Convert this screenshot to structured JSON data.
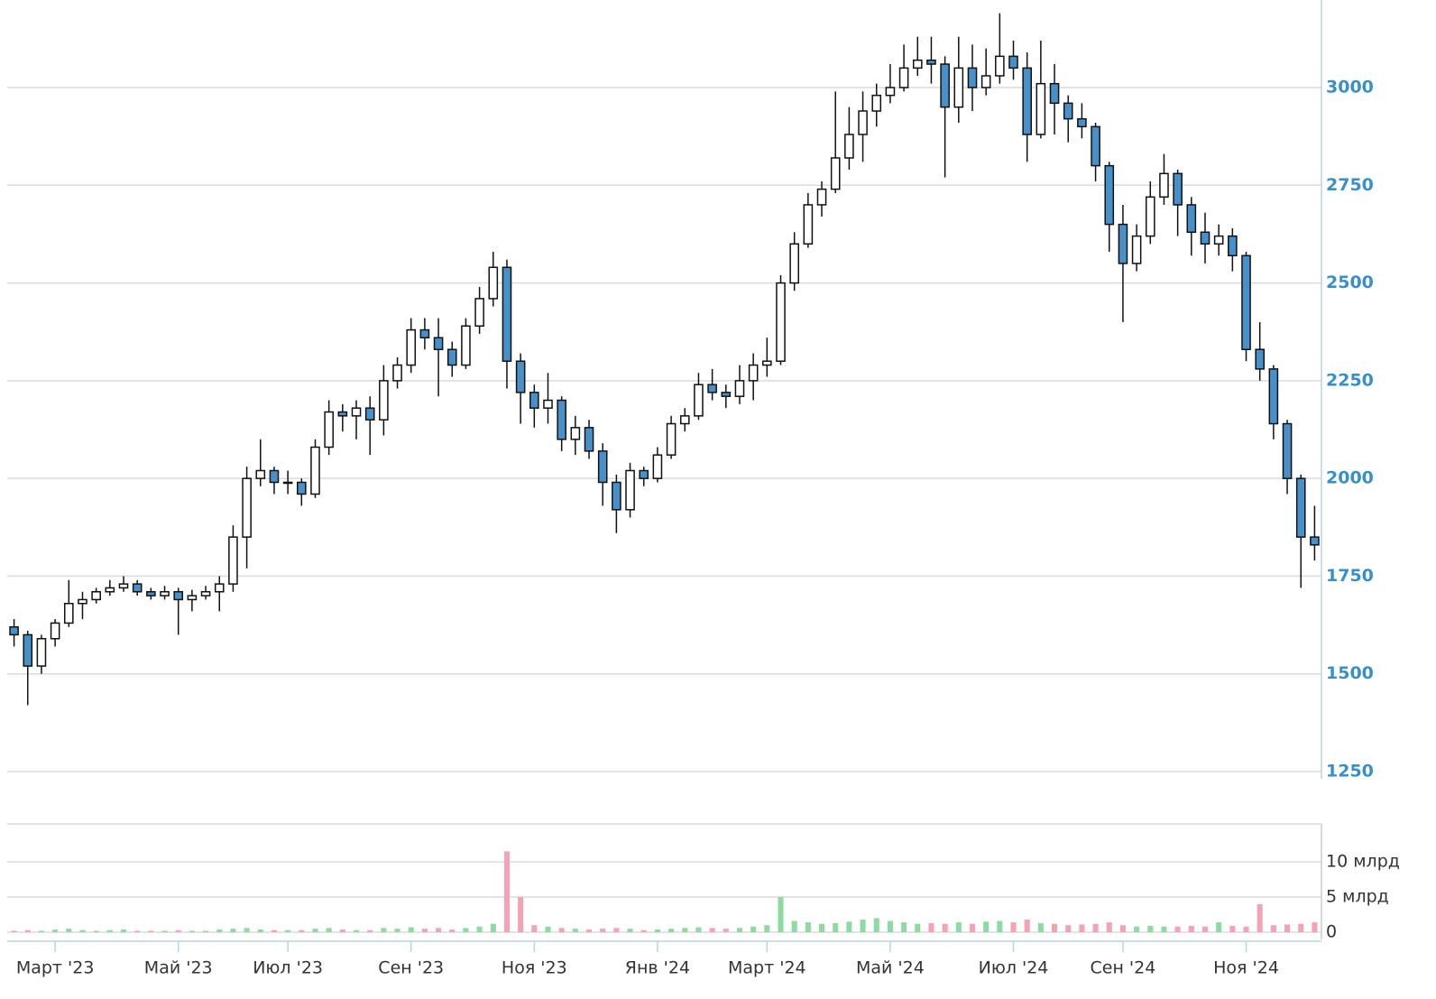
{
  "chart_data": {
    "type": "candlestick",
    "categories": [
      null,
      null,
      null,
      "Март '23",
      null,
      null,
      null,
      null,
      null,
      null,
      null,
      null,
      "Май '23",
      null,
      null,
      null,
      null,
      null,
      null,
      null,
      "Июл '23",
      null,
      null,
      null,
      null,
      null,
      null,
      null,
      null,
      "Сен '23",
      null,
      null,
      null,
      null,
      null,
      null,
      null,
      null,
      "Ноя '23",
      null,
      null,
      null,
      null,
      null,
      null,
      null,
      null,
      "Янв '24",
      null,
      null,
      null,
      null,
      null,
      null,
      null,
      "Март '24",
      null,
      null,
      null,
      null,
      null,
      null,
      null,
      null,
      "Май '24",
      null,
      null,
      null,
      null,
      null,
      null,
      null,
      null,
      "Июл '24",
      null,
      null,
      null,
      null,
      null,
      null,
      null,
      "Сен '24",
      null,
      null,
      null,
      null,
      null,
      null,
      null,
      null,
      "Ноя '24",
      null,
      null,
      null,
      null,
      null
    ],
    "open": [
      1620,
      1600,
      1520,
      1590,
      1630,
      1680,
      1690,
      1710,
      1720,
      1730,
      1710,
      1700,
      1710,
      1690,
      1700,
      1710,
      1730,
      1850,
      2000,
      2020,
      1990,
      1990,
      1960,
      2080,
      2170,
      2160,
      2180,
      2150,
      2250,
      2290,
      2380,
      2360,
      2330,
      2290,
      2390,
      2460,
      2540,
      2300,
      2220,
      2180,
      2200,
      2100,
      2130,
      2070,
      1990,
      1920,
      2020,
      2000,
      2060,
      2140,
      2160,
      2240,
      2220,
      2210,
      2250,
      2290,
      2300,
      2500,
      2600,
      2700,
      2740,
      2820,
      2880,
      2940,
      2980,
      3000,
      3050,
      3070,
      3060,
      2950,
      3050,
      3000,
      3030,
      3080,
      3050,
      2880,
      3010,
      2960,
      2920,
      2900,
      2800,
      2650,
      2550,
      2620,
      2720,
      2780,
      2700,
      2630,
      2600,
      2620,
      2570,
      2330,
      2280,
      2140,
      2000,
      1850
    ],
    "high": [
      1640,
      1610,
      1600,
      1640,
      1740,
      1710,
      1720,
      1740,
      1750,
      1740,
      1720,
      1725,
      1720,
      1715,
      1725,
      1750,
      1880,
      2030,
      2100,
      2030,
      2020,
      2000,
      2100,
      2200,
      2190,
      2200,
      2210,
      2290,
      2310,
      2410,
      2410,
      2410,
      2350,
      2410,
      2490,
      2580,
      2560,
      2320,
      2240,
      2270,
      2210,
      2160,
      2150,
      2090,
      2010,
      2040,
      2030,
      2080,
      2160,
      2180,
      2270,
      2280,
      2240,
      2290,
      2320,
      2360,
      2520,
      2630,
      2730,
      2760,
      2990,
      2950,
      2990,
      3010,
      3060,
      3110,
      3130,
      3130,
      3080,
      3130,
      3110,
      3100,
      3190,
      3120,
      3090,
      3120,
      3060,
      2980,
      2960,
      2910,
      2810,
      2700,
      2650,
      2760,
      2830,
      2790,
      2720,
      2680,
      2650,
      2640,
      2580,
      2400,
      2290,
      2150,
      2010,
      1930
    ],
    "low": [
      1570,
      1420,
      1500,
      1570,
      1620,
      1640,
      1680,
      1700,
      1710,
      1700,
      1690,
      1690,
      1600,
      1660,
      1690,
      1660,
      1710,
      1770,
      1980,
      1960,
      1960,
      1930,
      1950,
      2060,
      2120,
      2100,
      2060,
      2110,
      2230,
      2270,
      2330,
      2210,
      2260,
      2280,
      2370,
      2440,
      2230,
      2140,
      2130,
      2140,
      2070,
      2060,
      2050,
      1930,
      1860,
      1900,
      1980,
      1990,
      2050,
      2120,
      2150,
      2200,
      2180,
      2190,
      2200,
      2260,
      2290,
      2480,
      2590,
      2670,
      2730,
      2790,
      2810,
      2900,
      2960,
      2990,
      3030,
      3010,
      2770,
      2910,
      2940,
      2980,
      3010,
      3020,
      2810,
      2870,
      2880,
      2860,
      2870,
      2760,
      2580,
      2400,
      2530,
      2600,
      2700,
      2620,
      2570,
      2550,
      2570,
      2530,
      2300,
      2250,
      2100,
      1960,
      1720,
      1790
    ],
    "close": [
      1600,
      1520,
      1590,
      1630,
      1680,
      1690,
      1710,
      1720,
      1730,
      1710,
      1700,
      1710,
      1690,
      1700,
      1710,
      1730,
      1850,
      2000,
      2020,
      1990,
      1990,
      1960,
      2080,
      2170,
      2160,
      2180,
      2150,
      2250,
      2290,
      2380,
      2360,
      2330,
      2290,
      2390,
      2460,
      2540,
      2300,
      2220,
      2180,
      2200,
      2100,
      2130,
      2070,
      1990,
      1920,
      2020,
      2000,
      2060,
      2140,
      2160,
      2240,
      2220,
      2210,
      2250,
      2290,
      2300,
      2500,
      2600,
      2700,
      2740,
      2820,
      2880,
      2940,
      2980,
      3000,
      3050,
      3070,
      3060,
      2950,
      3050,
      3000,
      3030,
      3080,
      3050,
      2880,
      3010,
      2960,
      2920,
      2900,
      2800,
      2650,
      2550,
      2620,
      2720,
      2780,
      2700,
      2630,
      2600,
      2620,
      2570,
      2330,
      2280,
      2140,
      2000,
      1850,
      1830
    ],
    "volume": [
      0.2,
      0.3,
      0.2,
      0.4,
      0.5,
      0.3,
      0.2,
      0.3,
      0.4,
      0.2,
      0.2,
      0.2,
      0.3,
      0.2,
      0.2,
      0.4,
      0.5,
      0.6,
      0.4,
      0.3,
      0.3,
      0.3,
      0.5,
      0.6,
      0.4,
      0.3,
      0.3,
      0.6,
      0.5,
      0.7,
      0.5,
      0.6,
      0.4,
      0.6,
      0.8,
      1.2,
      11.5,
      5.0,
      1.0,
      0.8,
      0.6,
      0.5,
      0.4,
      0.5,
      0.6,
      0.5,
      0.3,
      0.4,
      0.5,
      0.6,
      0.7,
      0.6,
      0.5,
      0.6,
      0.8,
      1.0,
      5.0,
      1.6,
      1.4,
      1.2,
      1.3,
      1.5,
      1.8,
      2.0,
      1.6,
      1.4,
      1.2,
      1.3,
      1.2,
      1.4,
      1.2,
      1.5,
      1.6,
      1.4,
      1.8,
      1.3,
      1.2,
      1.0,
      1.1,
      1.2,
      1.4,
      1.0,
      0.8,
      0.9,
      0.8,
      0.8,
      0.9,
      0.8,
      1.4,
      0.9,
      0.8,
      4.0,
      1.0,
      1.1,
      1.2,
      1.4
    ],
    "ylim": [
      1250,
      3224
    ],
    "yticks": [
      1250,
      1500,
      1750,
      2000,
      2250,
      2500,
      2750,
      3000
    ],
    "y2lim": [
      0,
      15.4
    ],
    "y2ticks": [
      0,
      {
        "value": 5,
        "label": "5 млрд"
      },
      {
        "value": 10,
        "label": "10 млрд"
      }
    ],
    "up_color": "#ffffff",
    "down_color": "#4a90c8",
    "volume_up_color": "#8fd9a3",
    "volume_down_color": "#f2a3b6",
    "grid": true
  }
}
